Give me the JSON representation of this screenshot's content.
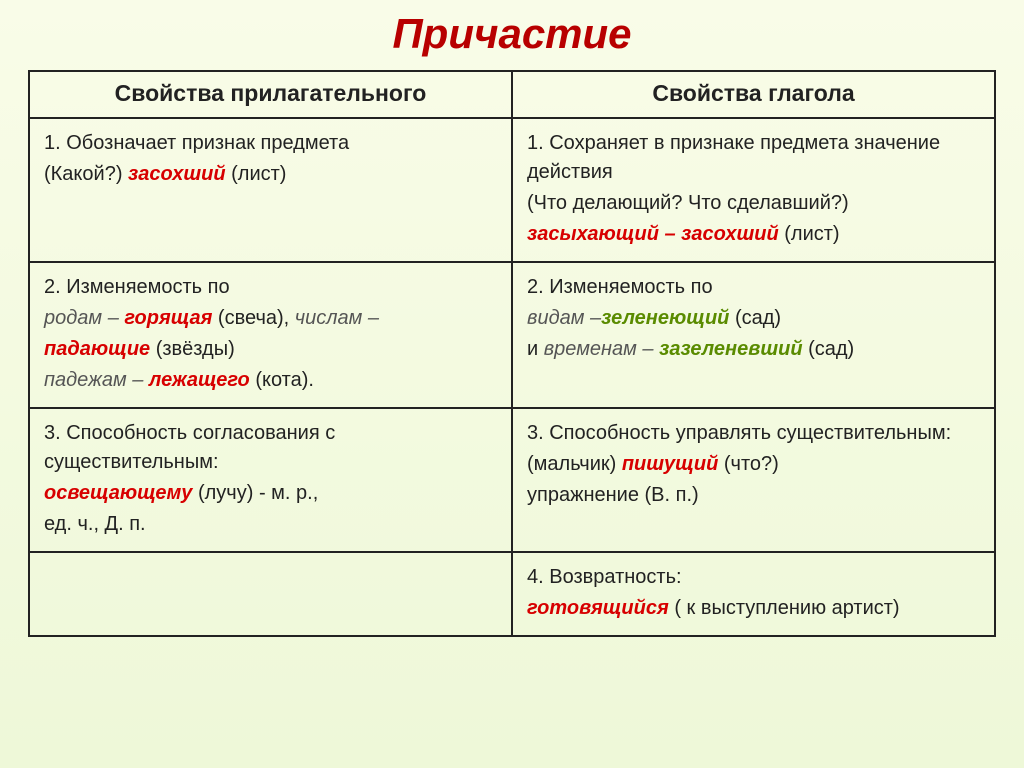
{
  "title": {
    "text": "Причастие",
    "color": "#b80000",
    "fontsize": 42
  },
  "header": {
    "left": "Свойства прилагательного",
    "right": "Свойства глагола",
    "fontsize": 23,
    "color": "#222222"
  },
  "body_fontsize": 20,
  "body_color": "#222222",
  "italic_color": "#555555",
  "keyword_color": "#d70000",
  "green_keyword_color": "#5a8b00",
  "rows": [
    {
      "left": {
        "l1a": "1. Обозначает признак предмета",
        "l2a": "(Какой?) ",
        "l2kw": "засохший",
        "l2b": " (лист)"
      },
      "right": {
        "l1": "1. Сохраняет в признаке предмета значение действия",
        "l2": "(Что делающий? Что сделавший?)",
        "l3kw1": "засыхающий – засохший",
        "l3b": " (лист)"
      }
    },
    {
      "left": {
        "l1": "2. Изменяемость по",
        "l2a": "родам – ",
        "l2kw": "горящая",
        "l2b": " (свеча), ",
        "l2c": "числам –",
        "l3kw": "падающие",
        "l3b": " (звёзды)",
        "l4a": "падежам – ",
        "l4kw": "лежащего",
        "l4b": "  (кота)."
      },
      "right": {
        "l1": "2. Изменяемость по",
        "l2a": "видам –",
        "l2kw": "зеленеющий",
        "l2b": " (сад)",
        "l3a": "и ",
        "l3b": "временам – ",
        "l3kw": "зазеленевший",
        "l3c": " (сад)"
      }
    },
    {
      "left": {
        "l1": "3. Способность согласования с существительным:",
        "l2kw": "освещающему",
        "l2b": " (лучу) - м. р.,",
        "l3": "ед. ч., Д. п."
      },
      "right": {
        "l1": "3. Способность управлять существительным:",
        "l2a": "(мальчик) ",
        "l2kw": "пишущий",
        "l2b": " (что?)",
        "l3": "упражнение (В. п.)"
      }
    },
    {
      "left": {},
      "right": {
        "l1": "4. Возвратность:",
        "l2kw": "готовящийся",
        "l2b": " ( к выступлению артист)"
      }
    }
  ]
}
